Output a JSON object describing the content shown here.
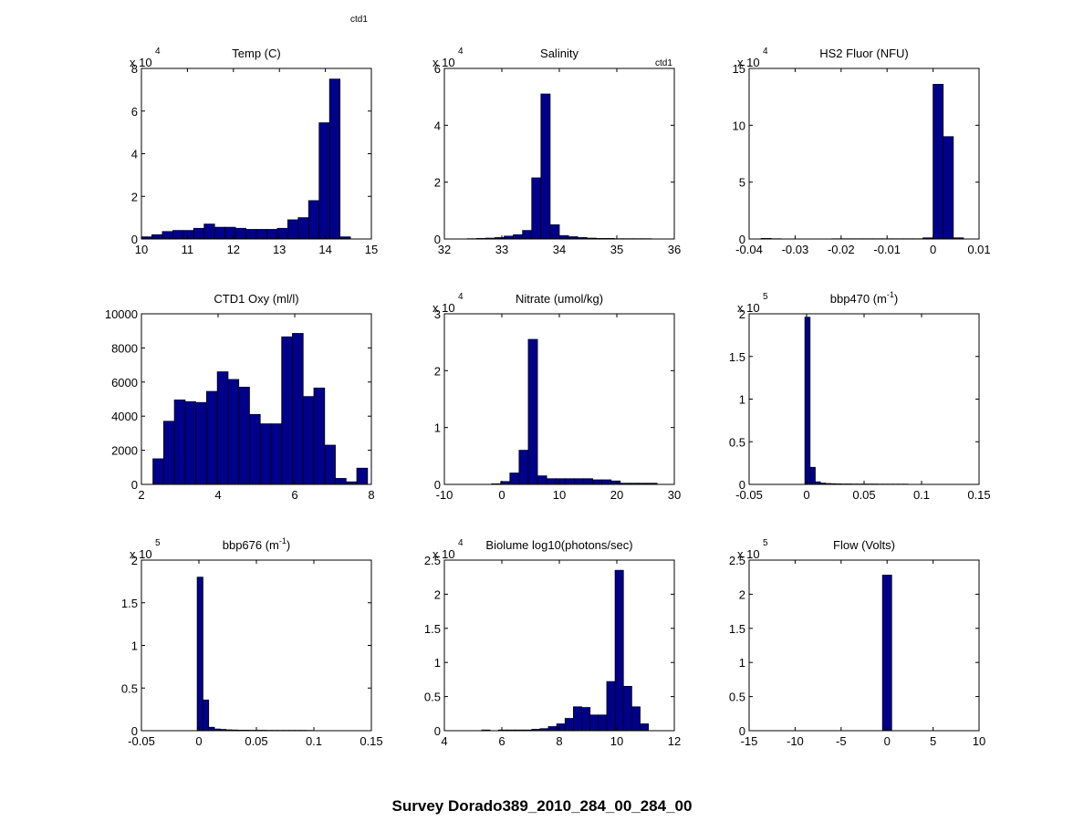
{
  "figure": {
    "suptitle": "Survey Dorado389_2010_284_00_284_00",
    "tag_top": "ctd1",
    "tag_salinity": "ctd1",
    "bar_color": "#00008b"
  },
  "chart_data": [
    {
      "type": "bar",
      "title": "Temp (C)",
      "y_exp": "4",
      "xlim": [
        10,
        15
      ],
      "ylim": [
        0,
        8
      ],
      "xticks": [
        10,
        11,
        12,
        13,
        14,
        15
      ],
      "xticklabels": [
        "10",
        "11",
        "12",
        "13",
        "14",
        "15"
      ],
      "yticks": [
        0,
        2,
        4,
        6,
        8
      ],
      "yticklabels": [
        "0",
        "2",
        "4",
        "6",
        "8"
      ],
      "bin_edges": [
        10.0,
        10.227,
        10.455,
        10.682,
        10.909,
        11.136,
        11.364,
        11.591,
        11.818,
        12.045,
        12.273,
        12.5,
        12.727,
        12.955,
        13.182,
        13.409,
        13.636,
        13.864,
        14.091,
        14.318,
        14.545
      ],
      "values": [
        0.1,
        0.2,
        0.35,
        0.4,
        0.4,
        0.5,
        0.7,
        0.55,
        0.55,
        0.5,
        0.45,
        0.45,
        0.45,
        0.5,
        0.9,
        1.0,
        1.8,
        5.45,
        7.5,
        0.1
      ]
    },
    {
      "type": "bar",
      "title": "Salinity",
      "y_exp": "4",
      "xlim": [
        32,
        36
      ],
      "ylim": [
        0,
        6
      ],
      "xticks": [
        32,
        33,
        34,
        35,
        36
      ],
      "xticklabels": [
        "32",
        "33",
        "34",
        "35",
        "36"
      ],
      "yticks": [
        0,
        2,
        4,
        6
      ],
      "yticklabels": [
        "0",
        "2",
        "4",
        "6"
      ],
      "bin_edges": [
        32.4,
        32.56,
        32.72,
        32.88,
        33.04,
        33.2,
        33.36,
        33.52,
        33.68,
        33.84,
        34.0,
        34.16,
        34.32,
        34.48,
        34.64,
        34.8,
        34.96,
        35.12,
        35.28,
        35.44,
        35.6
      ],
      "values": [
        0.01,
        0.02,
        0.03,
        0.05,
        0.1,
        0.15,
        0.3,
        2.15,
        5.1,
        0.5,
        0.12,
        0.08,
        0.05,
        0.03,
        0.02,
        0.02,
        0.01,
        0.01,
        0.01,
        0.01
      ]
    },
    {
      "type": "bar",
      "title": "HS2 Fluor (NFU)",
      "y_exp": "4",
      "xlim": [
        -0.04,
        0.01
      ],
      "ylim": [
        0,
        15
      ],
      "xticks": [
        -0.04,
        -0.03,
        -0.02,
        -0.01,
        0,
        0.01
      ],
      "xticklabels": [
        "-0.04",
        "-0.03",
        "-0.02",
        "-0.01",
        "0",
        "0.01"
      ],
      "yticks": [
        0,
        5,
        10,
        15
      ],
      "yticklabels": [
        "0",
        "5",
        "10",
        "15"
      ],
      "bin_edges": [
        -0.0374,
        -0.0352,
        -0.033,
        -0.0308,
        -0.0286,
        -0.0264,
        -0.0242,
        -0.022,
        -0.0198,
        -0.0176,
        -0.0154,
        -0.0132,
        -0.011,
        -0.0088,
        -0.0066,
        -0.0044,
        -0.0022,
        0.0,
        0.0022,
        0.0044,
        0.0066
      ],
      "values": [
        0.05,
        0.02,
        0.0,
        0.0,
        0.0,
        0.0,
        0.0,
        0.02,
        0.02,
        0.02,
        0.02,
        0.02,
        0.02,
        0.02,
        0.02,
        0.02,
        0.1,
        13.6,
        9.0,
        0.1
      ]
    },
    {
      "type": "bar",
      "title": "CTD1 Oxy (ml/l)",
      "y_exp": "",
      "xlim": [
        2,
        8
      ],
      "ylim": [
        0,
        10000
      ],
      "xticks": [
        2,
        4,
        6,
        8
      ],
      "xticklabels": [
        "2",
        "4",
        "6",
        "8"
      ],
      "yticks": [
        0,
        2000,
        4000,
        6000,
        8000,
        10000
      ],
      "yticklabels": [
        "0",
        "2000",
        "4000",
        "6000",
        "8000",
        "10000"
      ],
      "bin_edges": [
        2.3,
        2.58,
        2.86,
        3.14,
        3.42,
        3.7,
        3.98,
        4.26,
        4.54,
        4.82,
        5.1,
        5.38,
        5.66,
        5.94,
        6.22,
        6.5,
        6.78,
        7.06,
        7.34,
        7.62,
        7.9
      ],
      "values": [
        1500,
        3700,
        4950,
        4850,
        4800,
        5450,
        6600,
        6150,
        5700,
        4100,
        3550,
        3550,
        8650,
        8850,
        5150,
        5650,
        2300,
        350,
        150,
        950
      ]
    },
    {
      "type": "bar",
      "title": "Nitrate (umol/kg)",
      "y_exp": "4",
      "xlim": [
        -10,
        30
      ],
      "ylim": [
        0,
        3
      ],
      "xticks": [
        -10,
        0,
        10,
        20,
        30
      ],
      "xticklabels": [
        "-10",
        "0",
        "10",
        "20",
        "30"
      ],
      "yticks": [
        0,
        1,
        2,
        3
      ],
      "yticklabels": [
        "0",
        "1",
        "2",
        "3"
      ],
      "bin_edges": [
        -5.0,
        -3.4,
        -1.8,
        -0.2,
        1.4,
        3.0,
        4.6,
        6.2,
        7.8,
        9.4,
        11.0,
        12.6,
        14.2,
        15.8,
        17.4,
        19.0,
        20.6,
        22.2,
        23.8,
        25.4,
        27.0
      ],
      "values": [
        0.0,
        0.0,
        0.01,
        0.05,
        0.2,
        0.6,
        2.55,
        0.15,
        0.1,
        0.1,
        0.1,
        0.1,
        0.1,
        0.08,
        0.08,
        0.06,
        0.02,
        0.02,
        0.02,
        0.02
      ]
    },
    {
      "type": "bar",
      "title": "bbp470 (m",
      "title_sup": "-1",
      "title_end": ")",
      "y_exp": "5",
      "xlim": [
        -0.05,
        0.15
      ],
      "ylim": [
        0,
        2
      ],
      "xticks": [
        -0.05,
        0,
        0.05,
        0.1,
        0.15
      ],
      "xticklabels": [
        "-0.05",
        "0",
        "0.05",
        "0.1",
        "0.15"
      ],
      "yticks": [
        0,
        0.5,
        1,
        1.5,
        2
      ],
      "yticklabels": [
        "0",
        "0.5",
        "1",
        "1.5",
        "2"
      ],
      "bin_edges": [
        -0.0015,
        0.003,
        0.0075,
        0.012,
        0.0165,
        0.021,
        0.0255,
        0.03,
        0.0345,
        0.039,
        0.0435,
        0.048,
        0.0525,
        0.057,
        0.0615,
        0.066,
        0.0705,
        0.075,
        0.0795,
        0.084,
        0.0885
      ],
      "values": [
        1.96,
        0.2,
        0.03,
        0.015,
        0.01,
        0.008,
        0.006,
        0.005,
        0.005,
        0.004,
        0.004,
        0.004,
        0.004,
        0.004,
        0.003,
        0.003,
        0.003,
        0.003,
        0.003,
        0.003
      ]
    },
    {
      "type": "bar",
      "title": "bbp676 (m",
      "title_sup": "-1",
      "title_end": ")",
      "y_exp": "5",
      "xlim": [
        -0.05,
        0.15
      ],
      "ylim": [
        0,
        2
      ],
      "xticks": [
        -0.05,
        0,
        0.05,
        0.1,
        0.15
      ],
      "xticklabels": [
        "-0.05",
        "0",
        "0.05",
        "0.1",
        "0.15"
      ],
      "yticks": [
        0,
        0.5,
        1,
        1.5,
        2
      ],
      "yticklabels": [
        "0",
        "0.5",
        "1",
        "1.5",
        "2"
      ],
      "bin_edges": [
        -0.0015,
        0.0035,
        0.0085,
        0.0135,
        0.0185,
        0.0235,
        0.0285,
        0.0335,
        0.0385,
        0.0435,
        0.0485,
        0.0535,
        0.0585,
        0.0635,
        0.0685,
        0.0735,
        0.0785,
        0.0835,
        0.0885,
        0.0935,
        0.0985
      ],
      "values": [
        1.8,
        0.36,
        0.04,
        0.02,
        0.015,
        0.01,
        0.008,
        0.006,
        0.006,
        0.005,
        0.005,
        0.005,
        0.004,
        0.004,
        0.004,
        0.004,
        0.004,
        0.004,
        0.004,
        0.003
      ]
    },
    {
      "type": "bar",
      "title": "Biolume log10(photons/sec)",
      "y_exp": "4",
      "xlim": [
        4,
        12
      ],
      "ylim": [
        0,
        2.5
      ],
      "xticks": [
        4,
        6,
        8,
        10,
        12
      ],
      "xticklabels": [
        "4",
        "6",
        "8",
        "10",
        "12"
      ],
      "yticks": [
        0,
        0.5,
        1,
        1.5,
        2,
        2.5
      ],
      "yticklabels": [
        "0",
        "0.5",
        "1",
        "1.5",
        "2",
        "2.5"
      ],
      "bin_edges": [
        5.3,
        5.59,
        5.88,
        6.17,
        6.46,
        6.75,
        7.04,
        7.33,
        7.62,
        7.91,
        8.2,
        8.49,
        8.78,
        9.07,
        9.36,
        9.65,
        9.94,
        10.23,
        10.52,
        10.81,
        11.1
      ],
      "values": [
        0.01,
        0.0,
        0.01,
        0.01,
        0.01,
        0.01,
        0.02,
        0.03,
        0.06,
        0.1,
        0.18,
        0.35,
        0.34,
        0.23,
        0.23,
        0.72,
        2.35,
        0.65,
        0.35,
        0.1
      ]
    },
    {
      "type": "bar",
      "title": "Flow (Volts)",
      "y_exp": "5",
      "xlim": [
        -15,
        10
      ],
      "ylim": [
        0,
        2.5
      ],
      "xticks": [
        -15,
        -10,
        -5,
        0,
        5,
        10
      ],
      "xticklabels": [
        "-15",
        "-10",
        "-5",
        "0",
        "5",
        "10"
      ],
      "yticks": [
        0,
        0.5,
        1,
        1.5,
        2,
        2.5
      ],
      "yticklabels": [
        "0",
        "0.5",
        "1",
        "1.5",
        "2",
        "2.5"
      ],
      "bin_edges": [
        -0.5,
        0.5
      ],
      "values": [
        2.28
      ]
    }
  ]
}
